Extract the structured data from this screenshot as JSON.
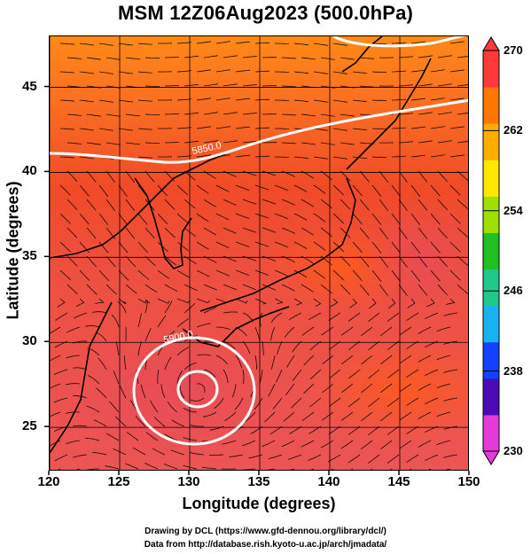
{
  "title": "MSM 12Z06Aug2023 (500.0hPa)",
  "x_axis": {
    "label": "Longitude (degrees)",
    "range": [
      120,
      150
    ],
    "ticks": [
      "120",
      "125",
      "130",
      "135",
      "140",
      "145",
      "150"
    ]
  },
  "y_axis": {
    "label": "Latitude  (degrees)",
    "range": [
      22.4,
      48
    ],
    "ticks": [
      "25",
      "30",
      "35",
      "40",
      "45"
    ]
  },
  "colorbar": {
    "range": [
      230,
      270
    ],
    "ticks": [
      "230",
      "238",
      "246",
      "254",
      "262",
      "270"
    ],
    "colors": [
      "#e33ad8",
      "#4a0bb8",
      "#1440ff",
      "#18b3f0",
      "#1fc98a",
      "#20c020",
      "#9fe000",
      "#ffe800",
      "#ffad00",
      "#ff7600",
      "#ff3a3a"
    ]
  },
  "contours": [
    {
      "label": "5850.0",
      "note": "isoline near 42N"
    },
    {
      "label": "5900.0",
      "note": "closed high near 27.5N 130E"
    }
  ],
  "field_colors": {
    "north": "#ff7a1a",
    "middle": "#f0482a",
    "south": "#ec5252"
  },
  "footer": {
    "line1": "Drawing by DCL (https://www.gfd-dennou.org/library/dcl/)",
    "line2": "Data from http://database.rish.kyoto-u.ac.jp/arch/jmadata/"
  }
}
